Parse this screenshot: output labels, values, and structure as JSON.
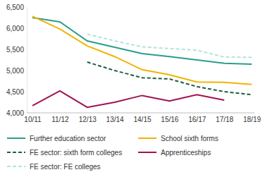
{
  "chart_data": {
    "type": "line",
    "categories": [
      "10/11",
      "11/12",
      "12/13",
      "13/14",
      "14/15",
      "15/16",
      "16/17",
      "17/18",
      "18/19"
    ],
    "series": [
      {
        "name": "Further education sector",
        "color": "#2a9d8f",
        "line_style": "solid",
        "values": [
          6250,
          6150,
          5700,
          5550,
          5400,
          5330,
          5250,
          5170,
          5150
        ]
      },
      {
        "name": "School sixth forms",
        "color": "#f2b300",
        "line_style": "solid",
        "values": [
          6280,
          5980,
          5580,
          5330,
          5020,
          4900,
          4730,
          4720,
          4670
        ]
      },
      {
        "name": "FE sector: sixth form colleges",
        "color": "#1e5e3e",
        "line_style": "dashed",
        "values": [
          null,
          null,
          5200,
          5000,
          4830,
          4800,
          4620,
          4500,
          4430
        ]
      },
      {
        "name": "Apprenticeships",
        "color": "#a0124f",
        "line_style": "solid",
        "values": [
          4170,
          4520,
          4130,
          4250,
          4410,
          4280,
          4430,
          4300,
          null
        ]
      },
      {
        "name": "FE sector: FE colleges",
        "color": "#b5e2dc",
        "line_style": "dashed",
        "values": [
          null,
          null,
          5860,
          5700,
          5560,
          5520,
          5480,
          5320,
          5310
        ]
      }
    ],
    "ylim": [
      4000,
      6500
    ],
    "yticks": [
      {
        "value": 4000,
        "label": "4,000"
      },
      {
        "value": 4500,
        "label": "4,500"
      },
      {
        "value": 5000,
        "label": "5,000"
      },
      {
        "value": 5500,
        "label": "5,500"
      },
      {
        "value": 6000,
        "label": "6,000"
      },
      {
        "value": 6500,
        "label": "6,500"
      }
    ],
    "grid": false,
    "legend": "bottom"
  }
}
